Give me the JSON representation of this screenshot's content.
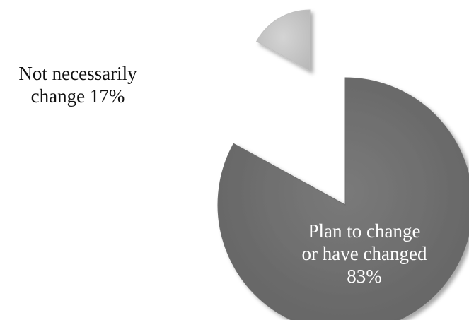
{
  "chart_data": {
    "type": "pie",
    "title": "",
    "exploded": true,
    "slices": [
      {
        "key": "not-necessarily-change",
        "category": "Not necessarily change",
        "value": 17,
        "label_lines": [
          "Not necessarily",
          "change 17%"
        ],
        "color": "#c0c0c0",
        "label_color": "#111111",
        "label_placement": "outside-left"
      },
      {
        "key": "plan-to-change",
        "category": "Plan to change or have changed",
        "value": 83,
        "label_lines": [
          "Plan to change",
          "or have changed",
          "83%"
        ],
        "color": "#6e6e6e",
        "label_color": "#ffffff",
        "label_placement": "inside"
      }
    ]
  }
}
